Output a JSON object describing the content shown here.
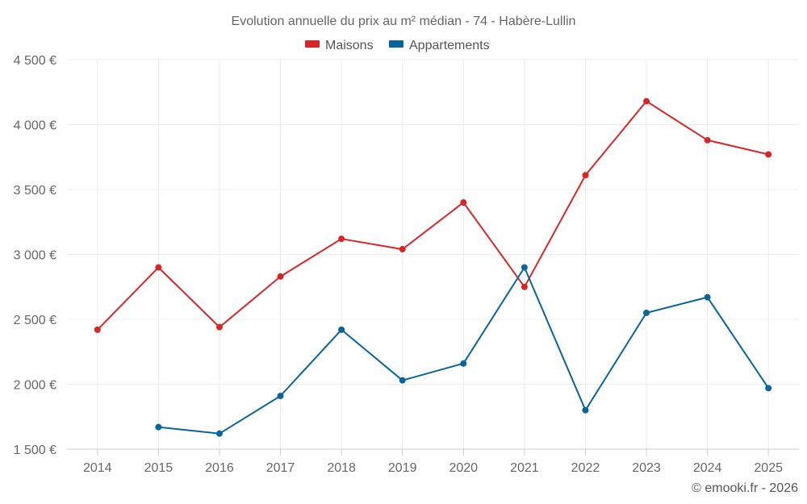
{
  "chart_data": {
    "type": "line",
    "title": "Evolution annuelle du prix au m² médian - 74 - Habère-Lullin",
    "categories": [
      "2014",
      "2015",
      "2016",
      "2017",
      "2018",
      "2019",
      "2020",
      "2021",
      "2022",
      "2023",
      "2024",
      "2025"
    ],
    "series": [
      {
        "name": "Maisons",
        "color": "#d62728",
        "values": [
          2420,
          2900,
          2440,
          2830,
          3120,
          3040,
          3400,
          2750,
          3610,
          4180,
          3880,
          3770
        ]
      },
      {
        "name": "Appartements",
        "color": "#08659a",
        "values": [
          null,
          1670,
          1620,
          1910,
          2420,
          2030,
          2160,
          2900,
          1800,
          2550,
          2670,
          1970
        ]
      }
    ],
    "ylim": [
      1500,
      4500
    ],
    "yticks": [
      1500,
      2000,
      2500,
      3000,
      3500,
      4000,
      4500
    ],
    "ytick_labels": [
      "1 500 €",
      "2 000 €",
      "2 500 €",
      "3 000 €",
      "3 500 €",
      "4 000 €",
      "4 500 €"
    ],
    "legend_position": "top-center",
    "grid": true
  },
  "credit": "© emooki.fr - 2026"
}
